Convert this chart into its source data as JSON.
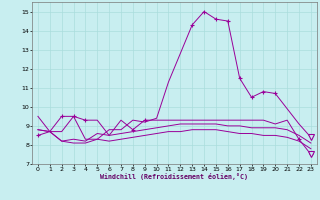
{
  "xlabel": "Windchill (Refroidissement éolien,°C)",
  "background_color": "#c8eef0",
  "line_color": "#990099",
  "grid_color": "#aadddd",
  "xlim": [
    -0.5,
    23.5
  ],
  "ylim": [
    7,
    15.5
  ],
  "yticks": [
    7,
    8,
    9,
    10,
    11,
    12,
    13,
    14,
    15
  ],
  "xticks": [
    0,
    1,
    2,
    3,
    4,
    5,
    6,
    7,
    8,
    9,
    10,
    11,
    12,
    13,
    14,
    15,
    16,
    17,
    18,
    19,
    20,
    21,
    22,
    23
  ],
  "series": [
    [
      8.5,
      8.7,
      8.7,
      9.5,
      8.3,
      8.3,
      8.8,
      8.8,
      9.3,
      9.2,
      9.4,
      11.3,
      12.8,
      14.3,
      15.0,
      14.6,
      14.5,
      11.5,
      10.5,
      10.8,
      10.7,
      9.9,
      9.1,
      8.4
    ],
    [
      8.8,
      8.7,
      8.2,
      8.3,
      8.2,
      8.6,
      8.5,
      8.6,
      8.7,
      8.8,
      8.9,
      9.0,
      9.1,
      9.1,
      9.1,
      9.1,
      9.0,
      9.0,
      8.9,
      8.9,
      8.9,
      8.8,
      8.5,
      8.1
    ],
    [
      8.8,
      8.7,
      8.2,
      8.1,
      8.1,
      8.3,
      8.2,
      8.3,
      8.4,
      8.5,
      8.6,
      8.7,
      8.7,
      8.8,
      8.8,
      8.8,
      8.7,
      8.6,
      8.6,
      8.5,
      8.5,
      8.4,
      8.2,
      7.8
    ],
    [
      9.5,
      8.7,
      9.5,
      9.5,
      9.3,
      9.3,
      8.5,
      9.3,
      8.8,
      9.3,
      9.3,
      9.3,
      9.3,
      9.3,
      9.3,
      9.3,
      9.3,
      9.3,
      9.3,
      9.3,
      9.1,
      9.3,
      8.3,
      7.5
    ]
  ],
  "markers_plus": [
    [
      0,
      3,
      13,
      14,
      15,
      16,
      17,
      18,
      19,
      20
    ],
    [],
    [],
    [
      2,
      4,
      8,
      9,
      22,
      23
    ]
  ],
  "triangle_down": [
    [
      23
    ],
    [],
    [],
    [
      23
    ]
  ]
}
